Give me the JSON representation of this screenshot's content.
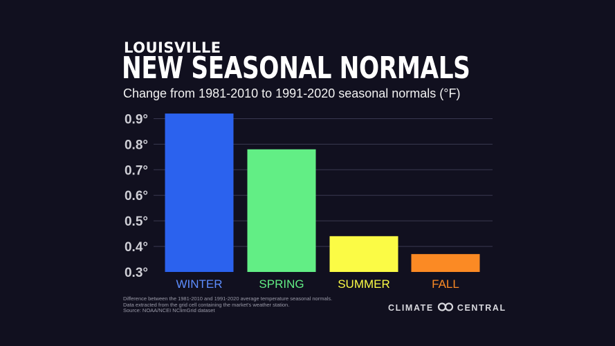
{
  "header": {
    "kicker": "LOUISVILLE",
    "title": "NEW SEASONAL NORMALS",
    "subtitle": "Change from 1981-2010 to 1991-2020 seasonal normals (°F)"
  },
  "chart_data": {
    "type": "bar",
    "categories": [
      "WINTER",
      "SPRING",
      "SUMMER",
      "FALL"
    ],
    "values": [
      0.92,
      0.78,
      0.44,
      0.37
    ],
    "colors": [
      "#2b62ee",
      "#62ee85",
      "#fbfb45",
      "#fb8a24"
    ],
    "label_colors": [
      "#5d8dff",
      "#62ee85",
      "#fbfb45",
      "#fb8a24"
    ],
    "yticks": [
      0.3,
      0.4,
      0.5,
      0.6,
      0.7,
      0.8,
      0.9
    ],
    "ytick_labels": [
      "0.3°",
      "0.4°",
      "0.5°",
      "0.6°",
      "0.7°",
      "0.8°",
      "0.9°"
    ],
    "ylim": [
      0.3,
      0.95
    ],
    "grid": true,
    "title": "NEW SEASONAL NORMALS",
    "subtitle": "Change from 1981-2010 to 1991-2020 seasonal normals (°F)"
  },
  "footnote": {
    "lines": [
      "Difference between the 1981-2010 and 1991-2020 average temperature seasonal normals.",
      "Data extracted from the grid cell containing the market's weather station.",
      "Source: NOAA/NCEI NClimGrid dataset"
    ]
  },
  "brand": {
    "left": "CLIMATE",
    "right": "CENTRAL",
    "icon": "climate-central-logo-icon"
  },
  "theme": {
    "background": "#11101f",
    "axis_text": "#cfcfd6",
    "grid": "#3a3950"
  }
}
